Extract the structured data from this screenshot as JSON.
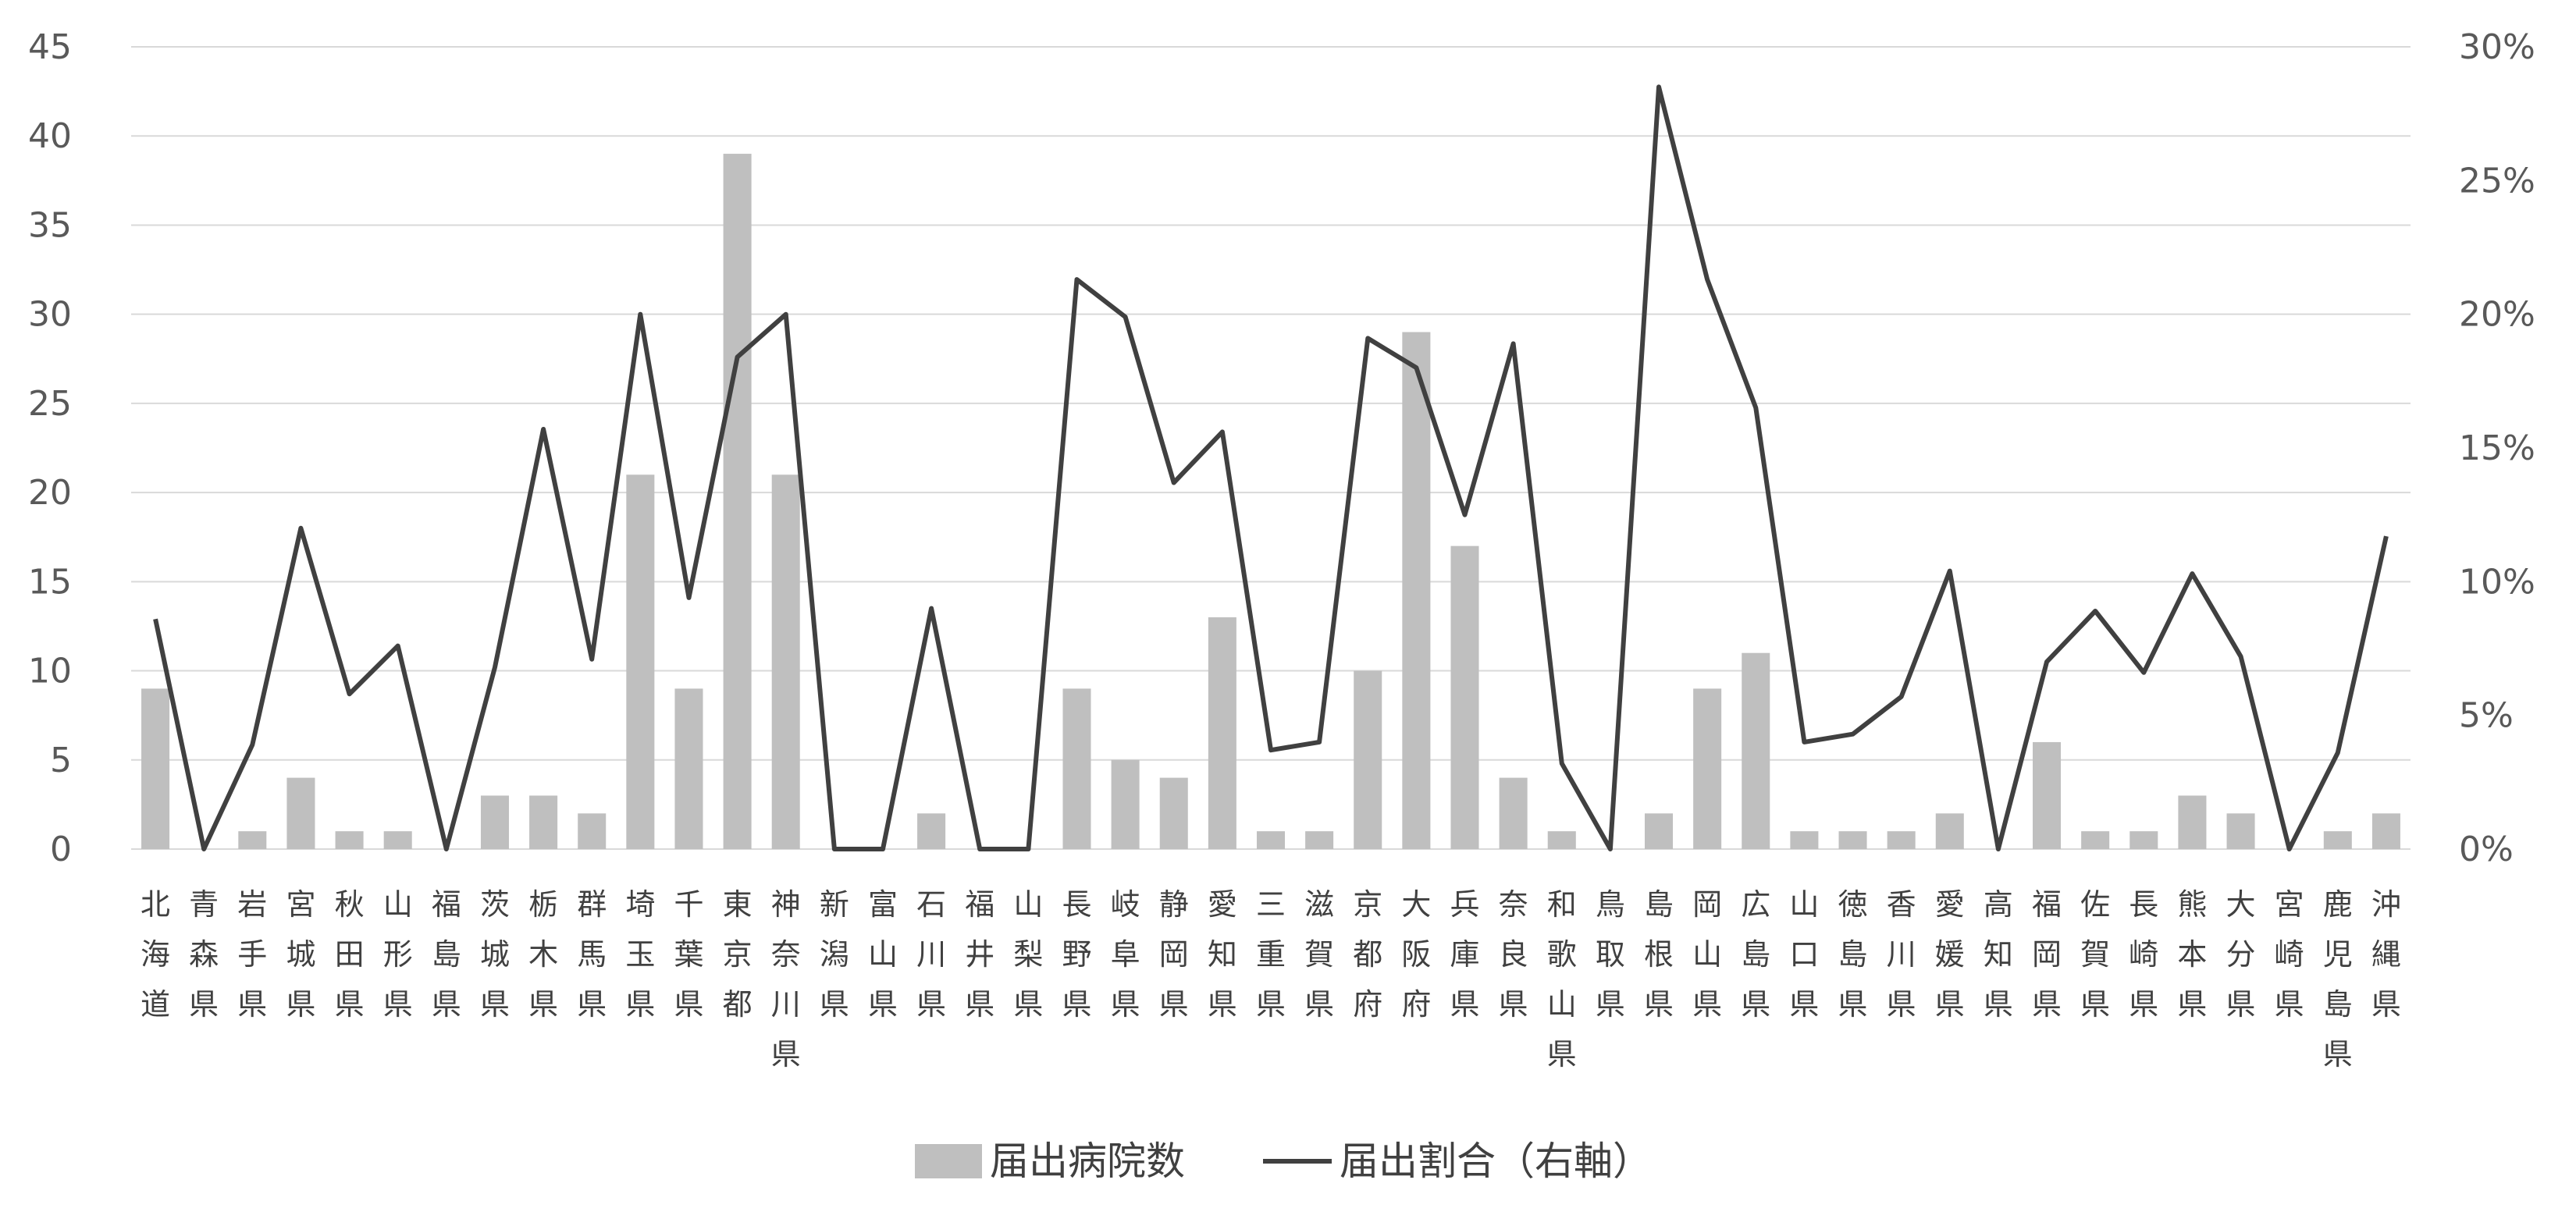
{
  "chart_data": {
    "type": "bar",
    "title": "",
    "categories": [
      "北海道",
      "青森県",
      "岩手県",
      "宮城県",
      "秋田県",
      "山形県",
      "福島県",
      "茨城県",
      "栃木県",
      "群馬県",
      "埼玉県",
      "千葉県",
      "東京都",
      "神奈川県",
      "新潟県",
      "富山県",
      "石川県",
      "福井県",
      "山梨県",
      "長野県",
      "岐阜県",
      "静岡県",
      "愛知県",
      "三重県",
      "滋賀県",
      "京都府",
      "大阪府",
      "兵庫県",
      "奈良県",
      "和歌山県",
      "鳥取県",
      "島根県",
      "岡山県",
      "広島県",
      "山口県",
      "徳島県",
      "香川県",
      "愛媛県",
      "高知県",
      "福岡県",
      "佐賀県",
      "長崎県",
      "熊本県",
      "大分県",
      "宮崎県",
      "鹿児島県",
      "沖縄県"
    ],
    "series": [
      {
        "name": "届出病院数",
        "type": "bar",
        "axis": "left",
        "color": "#bfbfbf",
        "values": [
          9,
          0,
          1,
          4,
          1,
          1,
          0,
          3,
          3,
          2,
          21,
          9,
          39,
          21,
          0,
          0,
          2,
          0,
          0,
          9,
          5,
          4,
          13,
          1,
          1,
          10,
          29,
          17,
          4,
          1,
          0,
          2,
          9,
          11,
          1,
          1,
          1,
          2,
          0,
          6,
          1,
          1,
          3,
          2,
          0,
          1,
          2
        ]
      },
      {
        "name": "届出割合（右軸）",
        "type": "line",
        "axis": "right",
        "color": "#404040",
        "values": [
          0.086,
          0,
          0.039,
          0.12,
          0.058,
          0.076,
          0,
          0.068,
          0.157,
          0.071,
          0.2,
          0.094,
          0.184,
          0.2,
          0,
          0,
          0.09,
          0,
          0,
          0.213,
          0.199,
          0.137,
          0.156,
          0.037,
          0.04,
          0.191,
          0.18,
          0.125,
          0.189,
          0.032,
          0,
          0.285,
          0.213,
          0.165,
          0.04,
          0.043,
          0.057,
          0.104,
          0,
          0.07,
          0.089,
          0.066,
          0.103,
          0.072,
          0,
          0.036,
          0.117
        ]
      }
    ],
    "y_left": {
      "lim": [
        0,
        45
      ],
      "ticks": [
        "0",
        "5",
        "10",
        "15",
        "20",
        "25",
        "30",
        "35",
        "40",
        "45"
      ]
    },
    "y_right": {
      "lim": [
        0,
        0.3
      ],
      "ticks": [
        "0%",
        "5%",
        "10%",
        "15%",
        "20%",
        "25%",
        "30%"
      ]
    },
    "grid": true,
    "legend_position": "bottom"
  }
}
